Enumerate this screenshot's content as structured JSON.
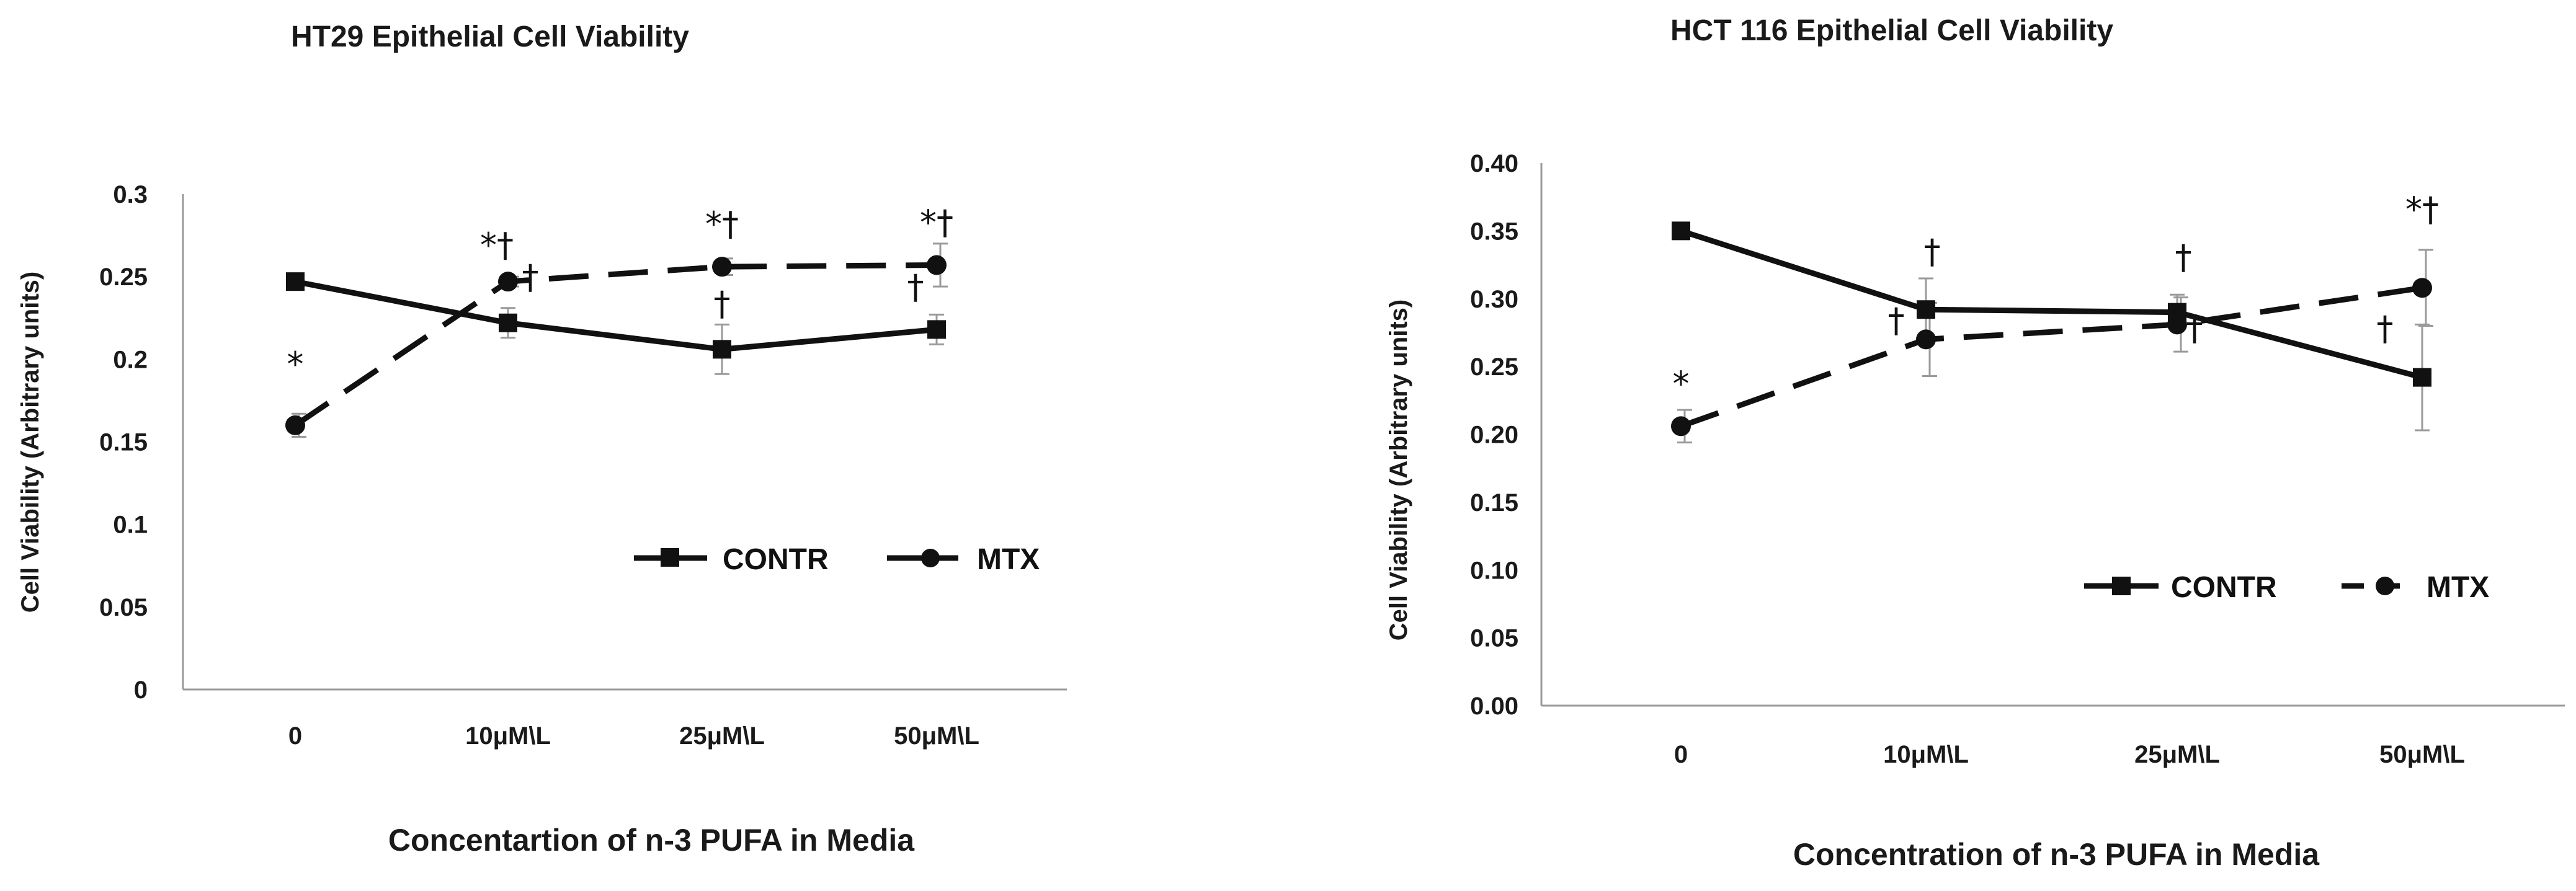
{
  "chart_data": [
    {
      "type": "line",
      "title": "HT29 Epithelial Cell Viability",
      "xlabel": "Concentartion of n-3 PUFA in Media",
      "ylabel": "Cell Viability (Arbitrary units)",
      "categories": [
        "0",
        "10μM\\L",
        "25μM\\L",
        "50μM\\L"
      ],
      "ylim": [
        0,
        0.3
      ],
      "yticks": [
        "0",
        "0.05",
        "0.1",
        "0.15",
        "0.2",
        "0.25",
        "0.3"
      ],
      "legend_position": "middle-right",
      "series": [
        {
          "name": "CONTR",
          "marker": "square",
          "dash": "solid",
          "values": [
            0.247,
            0.222,
            0.206,
            0.218
          ],
          "errors": [
            0.004,
            0.009,
            0.015,
            0.009
          ],
          "annotations": [
            "",
            "†",
            "†",
            "†"
          ]
        },
        {
          "name": "MTX",
          "marker": "circle",
          "dash": "dashed",
          "values": [
            0.16,
            0.247,
            0.256,
            0.257
          ],
          "errors": [
            0.007,
            0.003,
            0.005,
            0.013
          ],
          "annotations": [
            "*",
            "*†",
            "*†",
            "*†"
          ]
        }
      ]
    },
    {
      "type": "line",
      "title": "HCT 116 Epithelial Cell Viability",
      "xlabel": "Concentration  of n-3 PUFA in Media",
      "ylabel": "Cell Viability (Arbitrary units)",
      "categories": [
        "0",
        "10μM\\L",
        "25μM\\L",
        "50μM\\L"
      ],
      "ylim": [
        0,
        0.4
      ],
      "yticks": [
        "0.00",
        "0.05",
        "0.10",
        "0.15",
        "0.20",
        "0.25",
        "0.30",
        "0.35",
        "0.40"
      ],
      "legend_position": "lower-right",
      "series": [
        {
          "name": "CONTR",
          "marker": "square",
          "dash": "solid",
          "values": [
            0.35,
            0.292,
            0.29,
            0.242
          ],
          "errors": [
            0.003,
            0.023,
            0.013,
            0.039
          ],
          "annotations": [
            "",
            "†",
            "†",
            "†"
          ]
        },
        {
          "name": "MTX",
          "marker": "circle",
          "dash": "dashed",
          "values": [
            0.206,
            0.27,
            0.281,
            0.308
          ],
          "errors": [
            0.012,
            0.027,
            0.02,
            0.028
          ],
          "annotations": [
            "*",
            "†",
            "†",
            "*†"
          ]
        }
      ]
    }
  ]
}
